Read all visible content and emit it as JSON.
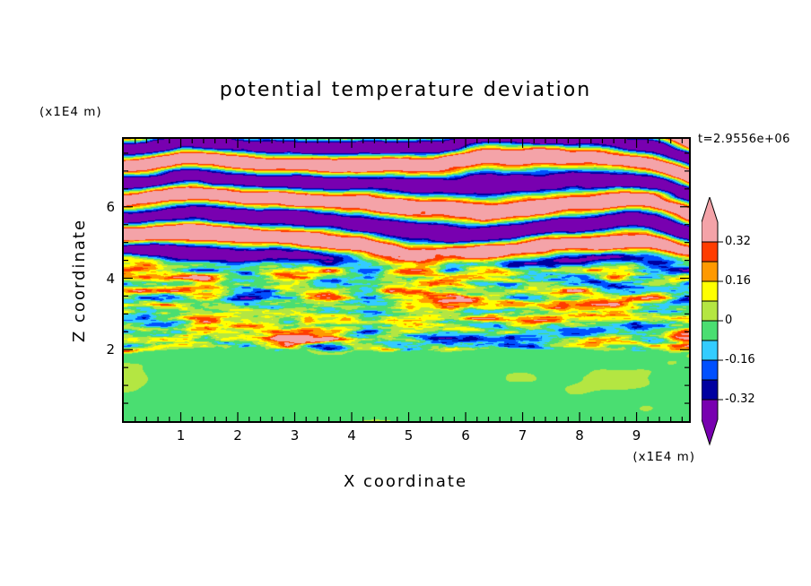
{
  "window": {
    "background": "#ffffff"
  },
  "chart_data": {
    "type": "filled_contour",
    "title": "potential temperature deviation",
    "annotations": {
      "time_label": "t=2.9556e+06"
    },
    "axes": {
      "xlabel": "X coordinate",
      "ylabel": "Z coordinate",
      "x_unit_label": "(x1E4 m)",
      "z_unit_label": "(x1E4 m)",
      "x_range": [
        0,
        9.92
      ],
      "z_range": [
        0,
        7.9
      ],
      "x_major_ticks": [
        "1",
        "2",
        "3",
        "4",
        "5",
        "6",
        "7",
        "8",
        "9"
      ],
      "x_minor_step": 0.2,
      "z_major_ticks": [
        "2",
        "4",
        "6"
      ],
      "z_minor_step": 0.5,
      "grid": false,
      "tick_style": "inward-all-sides"
    },
    "colorbar": {
      "orientation": "vertical",
      "position": "right",
      "labels": [
        "0.32",
        "0.16",
        "0",
        "-0.16",
        "-0.32"
      ],
      "levels": [
        -0.32,
        -0.24,
        -0.16,
        -0.08,
        0,
        0.08,
        0.16,
        0.24,
        0.32
      ],
      "colors": [
        {
          "range": "< -0.32",
          "name": "purple",
          "hex": "#7800B0"
        },
        {
          "range": "-0.32 to -0.24",
          "name": "navy",
          "hex": "#0000A0"
        },
        {
          "range": "-0.24 to -0.16",
          "name": "blue",
          "hex": "#0050FF"
        },
        {
          "range": "-0.16 to -0.08",
          "name": "cyan",
          "hex": "#33CCFF"
        },
        {
          "range": "-0.08 to 0",
          "name": "green",
          "hex": "#4ADE71"
        },
        {
          "range": "0 to 0.08",
          "name": "yellow-green",
          "hex": "#B4E642"
        },
        {
          "range": "0.08 to 0.16",
          "name": "yellow",
          "hex": "#FFFF00"
        },
        {
          "range": "0.16 to 0.24",
          "name": "orange",
          "hex": "#FF9900"
        },
        {
          "range": "0.24 to 0.32",
          "name": "red",
          "hex": "#FF3C00"
        },
        {
          "range": "> 0.32",
          "name": "pink",
          "hex": "#F4A3A8"
        }
      ]
    },
    "field_synthesis": {
      "seed": 7,
      "regions": [
        {
          "name": "upper-gravity-wave-bands",
          "z_from": 4.3,
          "z_to": 7.9,
          "character": "alternating pink/purple horizontal wave bands saturating beyond ±0.32"
        },
        {
          "name": "mid-turbulent-layer",
          "z_from": 2.0,
          "z_to": 4.3,
          "character": "horizontally elongated turbulent mottling around ±0.3 with slight warm bias"
        },
        {
          "name": "lower-quiescent-layer",
          "z_from": 0.0,
          "z_to": 2.0,
          "character": "smooth weak anomalies near 0: green background with yellow-green patches"
        }
      ]
    }
  }
}
